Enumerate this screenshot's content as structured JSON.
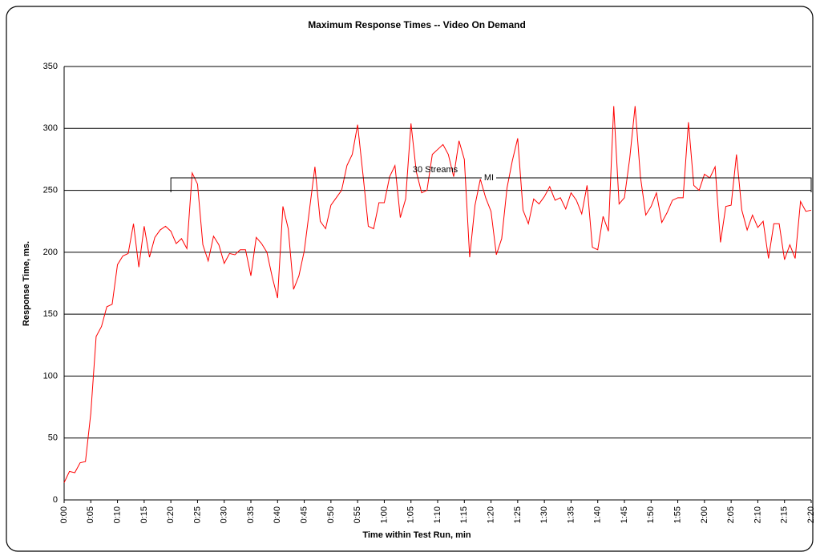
{
  "chart_data": {
    "type": "line",
    "title": "Maximum Response Times -- Video On Demand",
    "xlabel": "Time within Test Run, min",
    "ylabel": "Response Time, ms.",
    "categories": [
      "0:00",
      null,
      null,
      null,
      null,
      "0:05",
      null,
      null,
      null,
      null,
      "0:10",
      null,
      null,
      null,
      null,
      "0:15",
      null,
      null,
      null,
      null,
      "0:20",
      null,
      null,
      null,
      null,
      "0:25",
      null,
      null,
      null,
      null,
      "0:30",
      null,
      null,
      null,
      null,
      "0:35",
      null,
      null,
      null,
      null,
      "0:40",
      null,
      null,
      null,
      null,
      "0:45",
      null,
      null,
      null,
      null,
      "0:50",
      null,
      null,
      null,
      null,
      "0:55",
      null,
      null,
      null,
      null,
      "1:00",
      null,
      null,
      null,
      null,
      "1:05",
      null,
      null,
      null,
      null,
      "1:10",
      null,
      null,
      null,
      null,
      "1:15",
      null,
      null,
      null,
      null,
      "1:20",
      null,
      null,
      null,
      null,
      "1:25",
      null,
      null,
      null,
      null,
      "1:30",
      null,
      null,
      null,
      null,
      "1:35",
      null,
      null,
      null,
      null,
      "1:40",
      null,
      null,
      null,
      null,
      "1:45",
      null,
      null,
      null,
      null,
      "1:50",
      null,
      null,
      null,
      null,
      "1:55",
      null,
      null,
      null,
      null,
      "2:00",
      null,
      null,
      null,
      null,
      "2:05",
      null,
      null,
      null,
      null,
      "2:10",
      null,
      null,
      null,
      null,
      "2:15",
      null,
      null,
      null,
      null,
      "2:20"
    ],
    "values": [
      14,
      23,
      22,
      30,
      31,
      70,
      132,
      140,
      156,
      158,
      190,
      197,
      199,
      223,
      188,
      221,
      196,
      212,
      218,
      221,
      217,
      207,
      211,
      203,
      264,
      255,
      206,
      193,
      213,
      206,
      191,
      199,
      198,
      202,
      202,
      181,
      212,
      207,
      200,
      180,
      163,
      237,
      219,
      170,
      181,
      201,
      235,
      269,
      225,
      219,
      238,
      244,
      250,
      270,
      279,
      303,
      263,
      221,
      219,
      240,
      240,
      261,
      270,
      228,
      243,
      304,
      265,
      248,
      250,
      279,
      283,
      287,
      279,
      261,
      290,
      275,
      196,
      238,
      259,
      244,
      233,
      198,
      211,
      252,
      274,
      292,
      234,
      223,
      243,
      239,
      245,
      253,
      242,
      244,
      235,
      248,
      242,
      231,
      254,
      204,
      202,
      229,
      217,
      318,
      239,
      244,
      276,
      318,
      261,
      230,
      237,
      248,
      224,
      232,
      242,
      244,
      244,
      305,
      254,
      250,
      263,
      260,
      269,
      208,
      237,
      238,
      279,
      234,
      218,
      230,
      220,
      225,
      195,
      223,
      223,
      194,
      206,
      195,
      241,
      233,
      234
    ],
    "color": "#ff0000",
    "ylim": [
      0,
      350
    ],
    "yticks": [
      0,
      50,
      100,
      150,
      200,
      250,
      300,
      350
    ],
    "grid": true,
    "annotations": [
      {
        "text": "30 Streams",
        "from": "0:20",
        "to": "2:20"
      },
      {
        "text": "MI"
      }
    ]
  }
}
